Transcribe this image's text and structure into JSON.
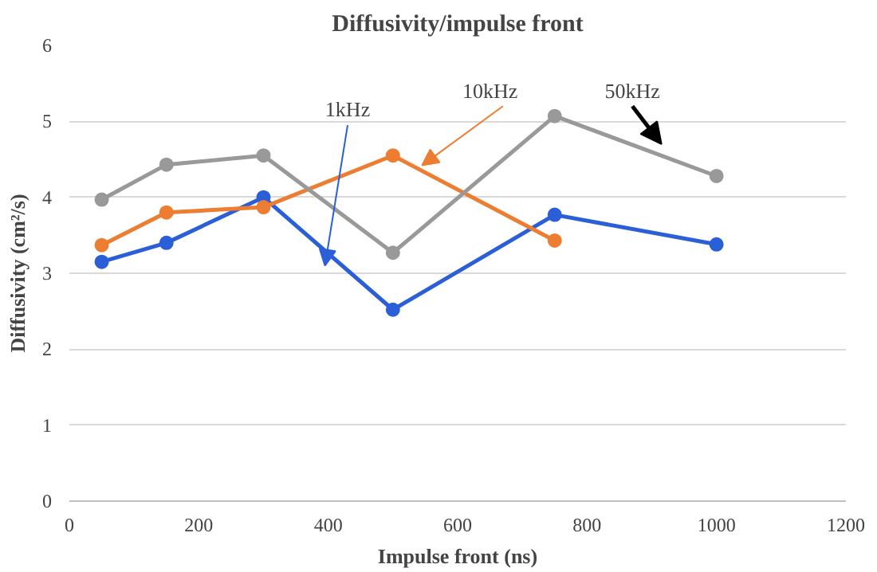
{
  "chart_data": {
    "type": "line",
    "title": "Diffusivity/impulse front",
    "xlabel": "Impulse front (ns)",
    "ylabel": "Diffusivity (cm²/s)",
    "series": [
      {
        "name": "1kHz",
        "color": "#2a5fd8",
        "x": [
          50,
          150,
          300,
          500,
          750,
          1000
        ],
        "values": [
          3.15,
          3.4,
          4.0,
          2.52,
          3.77,
          3.38
        ]
      },
      {
        "name": "10kHz",
        "color": "#ed7d31",
        "x": [
          50,
          150,
          300,
          500,
          750
        ],
        "values": [
          3.37,
          3.8,
          3.87,
          4.55,
          3.43
        ]
      },
      {
        "name": "50kHz",
        "color": "#999999",
        "x": [
          50,
          150,
          300,
          500,
          750,
          1000
        ],
        "values": [
          3.97,
          4.43,
          4.55,
          3.27,
          5.07,
          4.28
        ]
      }
    ],
    "xlim": [
      0,
      1200
    ],
    "xticks": [
      0,
      200,
      400,
      600,
      800,
      1000,
      1200
    ],
    "ylim": [
      0,
      6
    ],
    "yticks": [
      0,
      1,
      2,
      3,
      4,
      5,
      6
    ],
    "grid": "y",
    "marker": "circle",
    "line_style": "solid"
  }
}
